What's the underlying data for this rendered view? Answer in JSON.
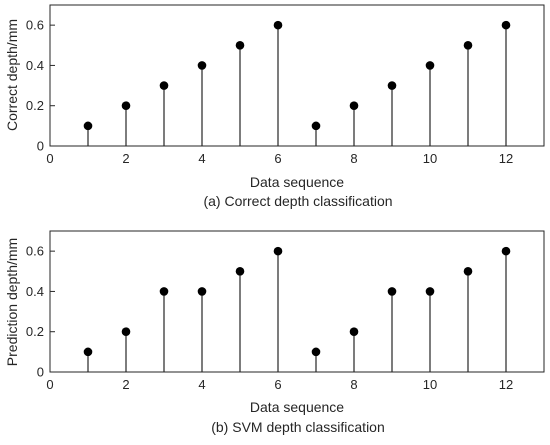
{
  "chart_data": [
    {
      "type": "stem",
      "xlabel": "Data sequence",
      "ylabel": "Correct depth/mm",
      "caption": "(a) Correct depth classification",
      "xlim": [
        0,
        13
      ],
      "ylim": [
        0,
        0.7
      ],
      "xticks": [
        0,
        2,
        4,
        6,
        8,
        10,
        12
      ],
      "yticks": [
        0,
        0.2,
        0.4,
        0.6
      ],
      "ytick_labels": [
        "0",
        "0.2",
        "0.4",
        "0.6"
      ],
      "x": [
        1,
        2,
        3,
        4,
        5,
        6,
        7,
        8,
        9,
        10,
        11,
        12
      ],
      "values": [
        0.1,
        0.2,
        0.3,
        0.4,
        0.5,
        0.6,
        0.1,
        0.2,
        0.3,
        0.4,
        0.5,
        0.6
      ]
    },
    {
      "type": "stem",
      "xlabel": "Data sequence",
      "ylabel": "Prediction depth/mm",
      "caption": "(b) SVM depth classification",
      "xlim": [
        0,
        13
      ],
      "ylim": [
        0,
        0.7
      ],
      "xticks": [
        0,
        2,
        4,
        6,
        8,
        10,
        12
      ],
      "yticks": [
        0,
        0.2,
        0.4,
        0.6
      ],
      "ytick_labels": [
        "0",
        "0.2",
        "0.4",
        "0.6"
      ],
      "x": [
        1,
        2,
        3,
        4,
        5,
        6,
        7,
        8,
        9,
        10,
        11,
        12
      ],
      "values": [
        0.1,
        0.2,
        0.4,
        0.4,
        0.5,
        0.6,
        0.1,
        0.2,
        0.4,
        0.4,
        0.5,
        0.6
      ]
    }
  ]
}
